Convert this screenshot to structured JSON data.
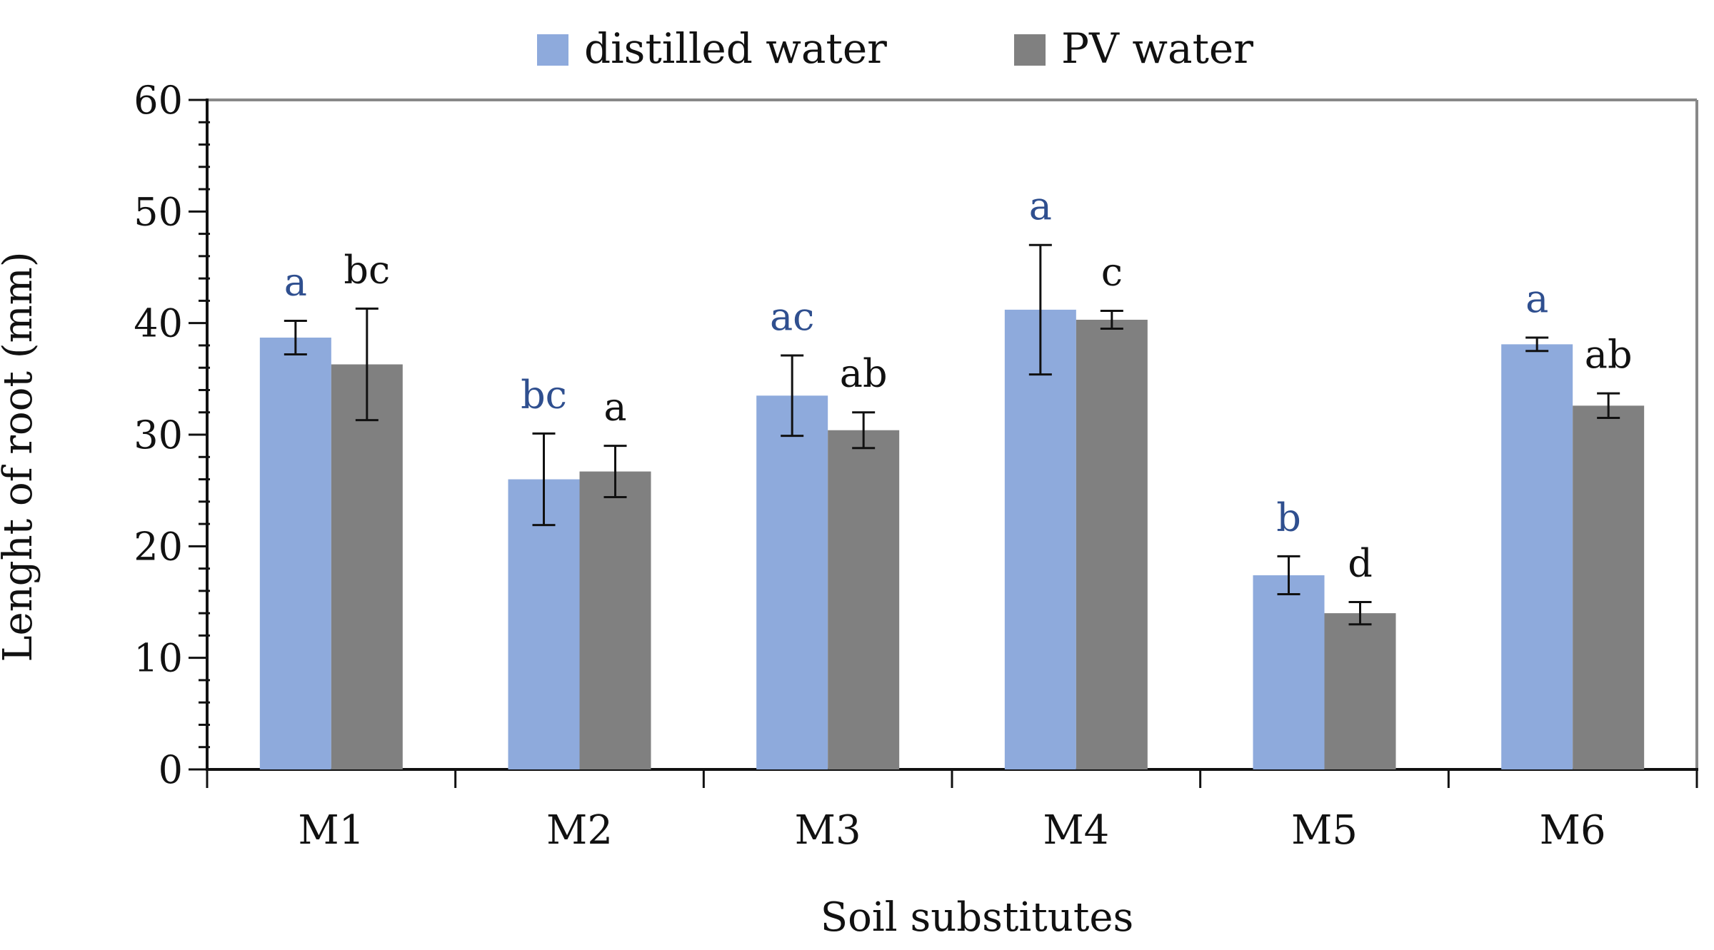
{
  "chart_data": {
    "type": "bar",
    "title": "",
    "xlabel": "Soil substitutes",
    "ylabel": "Lenght of root (mm)",
    "ylim": [
      0,
      60
    ],
    "y_major_step": 10,
    "y_minor_step": 2,
    "categories": [
      "M1",
      "M2",
      "M3",
      "M4",
      "M5",
      "M6"
    ],
    "legend_position": "top-center",
    "series": [
      {
        "name": "distilled water",
        "color": "#8eaadc",
        "label_color": "#2f4f8f",
        "values": [
          38.7,
          26.0,
          33.5,
          41.2,
          17.4,
          38.1
        ],
        "errors": [
          1.5,
          4.1,
          3.6,
          5.8,
          1.7,
          0.6
        ],
        "labels": [
          "a",
          "bc",
          "ac",
          "a",
          "b",
          "a"
        ]
      },
      {
        "name": "PV water",
        "color": "#808080",
        "label_color": "#111111",
        "values": [
          36.3,
          26.7,
          30.4,
          40.3,
          14.0,
          32.6
        ],
        "errors": [
          5.0,
          2.3,
          1.6,
          0.8,
          1.0,
          1.1
        ],
        "labels": [
          "bc",
          "a",
          "ab",
          "c",
          "d",
          "ab"
        ]
      }
    ]
  }
}
